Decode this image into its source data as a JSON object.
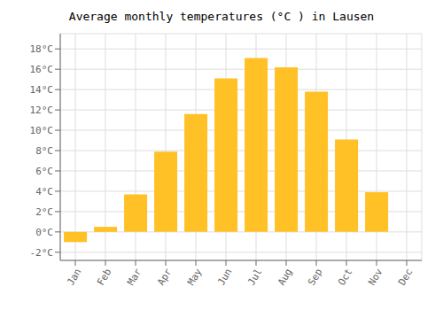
{
  "chart_data": {
    "type": "bar",
    "title": "Average monthly temperatures (°C ) in Lausen",
    "categories": [
      "Jan",
      "Feb",
      "Mar",
      "Apr",
      "May",
      "Jun",
      "Jul",
      "Aug",
      "Sep",
      "Oct",
      "Nov",
      "Dec"
    ],
    "values": [
      -1.0,
      0.5,
      3.7,
      7.9,
      11.6,
      15.1,
      17.1,
      16.2,
      13.8,
      9.1,
      3.9,
      0.0
    ],
    "color": "#FFC125",
    "ylim": [
      -2.8,
      19.5
    ],
    "yticks": [
      {
        "value": -2,
        "label": "-2°C"
      },
      {
        "value": 0,
        "label": "0°C"
      },
      {
        "value": 2,
        "label": "2°C"
      },
      {
        "value": 4,
        "label": "4°C"
      },
      {
        "value": 6,
        "label": "6°C"
      },
      {
        "value": 8,
        "label": "8°C"
      },
      {
        "value": 10,
        "label": "10°C"
      },
      {
        "value": 12,
        "label": "12°C"
      },
      {
        "value": 14,
        "label": "14°C"
      },
      {
        "value": 16,
        "label": "16°C"
      },
      {
        "value": 18,
        "label": "18°C"
      }
    ],
    "grid": true
  }
}
